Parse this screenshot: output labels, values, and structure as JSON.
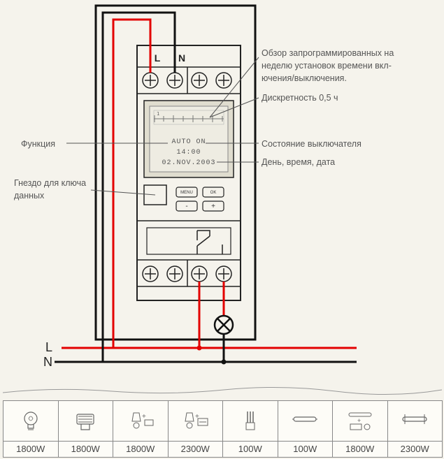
{
  "device": {
    "pin_L": "L",
    "pin_N": "N",
    "lcd_row_auto": "AUTO ON",
    "lcd_row_time": "14:00",
    "lcd_row_date": "02.NOV.2003",
    "btn_menu": "MENU",
    "btn_ok": "OK",
    "btn_plus": "+",
    "btn_minus": "-"
  },
  "annotations": {
    "review_l1": "Обзор запрограммированных на",
    "review_l2": "неделю установок времени вкл-",
    "review_l3": "ючения/выключения.",
    "discreteness": "Дискретность 0,5 ч",
    "function": "Функция",
    "socket_l1": "Гнездо для ключа",
    "socket_l2": "данных",
    "switch_state": "Состояние выключателя",
    "day_time_date": "День, время, дата"
  },
  "lines": {
    "L": "L",
    "N": "N"
  },
  "watt_row": {
    "cells": [
      {
        "label": "1800W"
      },
      {
        "label": "1800W"
      },
      {
        "label": "1800W"
      },
      {
        "label": "2300W"
      },
      {
        "label": "100W"
      },
      {
        "label": "100W"
      },
      {
        "label": "1800W"
      },
      {
        "label": "2300W"
      }
    ]
  },
  "colors": {
    "bg": "#f5f3ec",
    "wire_red": "#e30000",
    "wire_black": "#111111",
    "device_outline": "#222222",
    "lcd_bg": "#eceadf",
    "lcd_outer": "#ddd9cd",
    "text": "#555555",
    "grid": "#888888"
  }
}
